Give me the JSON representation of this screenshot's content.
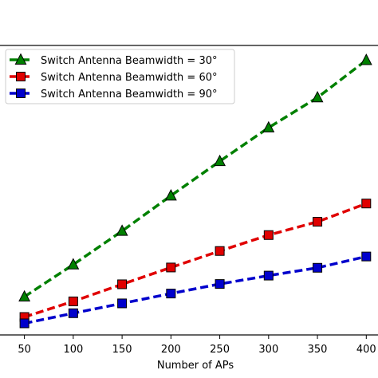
{
  "chart_data": {
    "type": "line",
    "title": "",
    "xlabel": "Number of APs",
    "ylabel": "",
    "x": [
      50,
      100,
      150,
      200,
      250,
      300,
      350,
      400
    ],
    "xticks": [
      "50",
      "100",
      "150",
      "200",
      "250",
      "300",
      "350",
      "400"
    ],
    "xlim": [
      25,
      412
    ],
    "ylim": [
      0,
      100
    ],
    "grid": false,
    "legend_position": "top-left",
    "series": [
      {
        "name": "Switch Antenna Beamwidth = 30°",
        "color": "#008000",
        "marker": "triangle",
        "values": [
          13.2,
          24.3,
          35.9,
          48.1,
          60.0,
          71.6,
          82.0,
          94.9
        ]
      },
      {
        "name": "Switch Antenna Beamwidth = 60°",
        "color": "#e00000",
        "marker": "square",
        "values": [
          6.2,
          11.6,
          17.5,
          23.3,
          29.0,
          34.5,
          39.1,
          45.4
        ]
      },
      {
        "name": "Switch Antenna Beamwidth = 90°",
        "color": "#0000cc",
        "marker": "square",
        "values": [
          4.0,
          7.5,
          10.9,
          14.3,
          17.6,
          20.5,
          23.2,
          27.1
        ]
      }
    ]
  }
}
